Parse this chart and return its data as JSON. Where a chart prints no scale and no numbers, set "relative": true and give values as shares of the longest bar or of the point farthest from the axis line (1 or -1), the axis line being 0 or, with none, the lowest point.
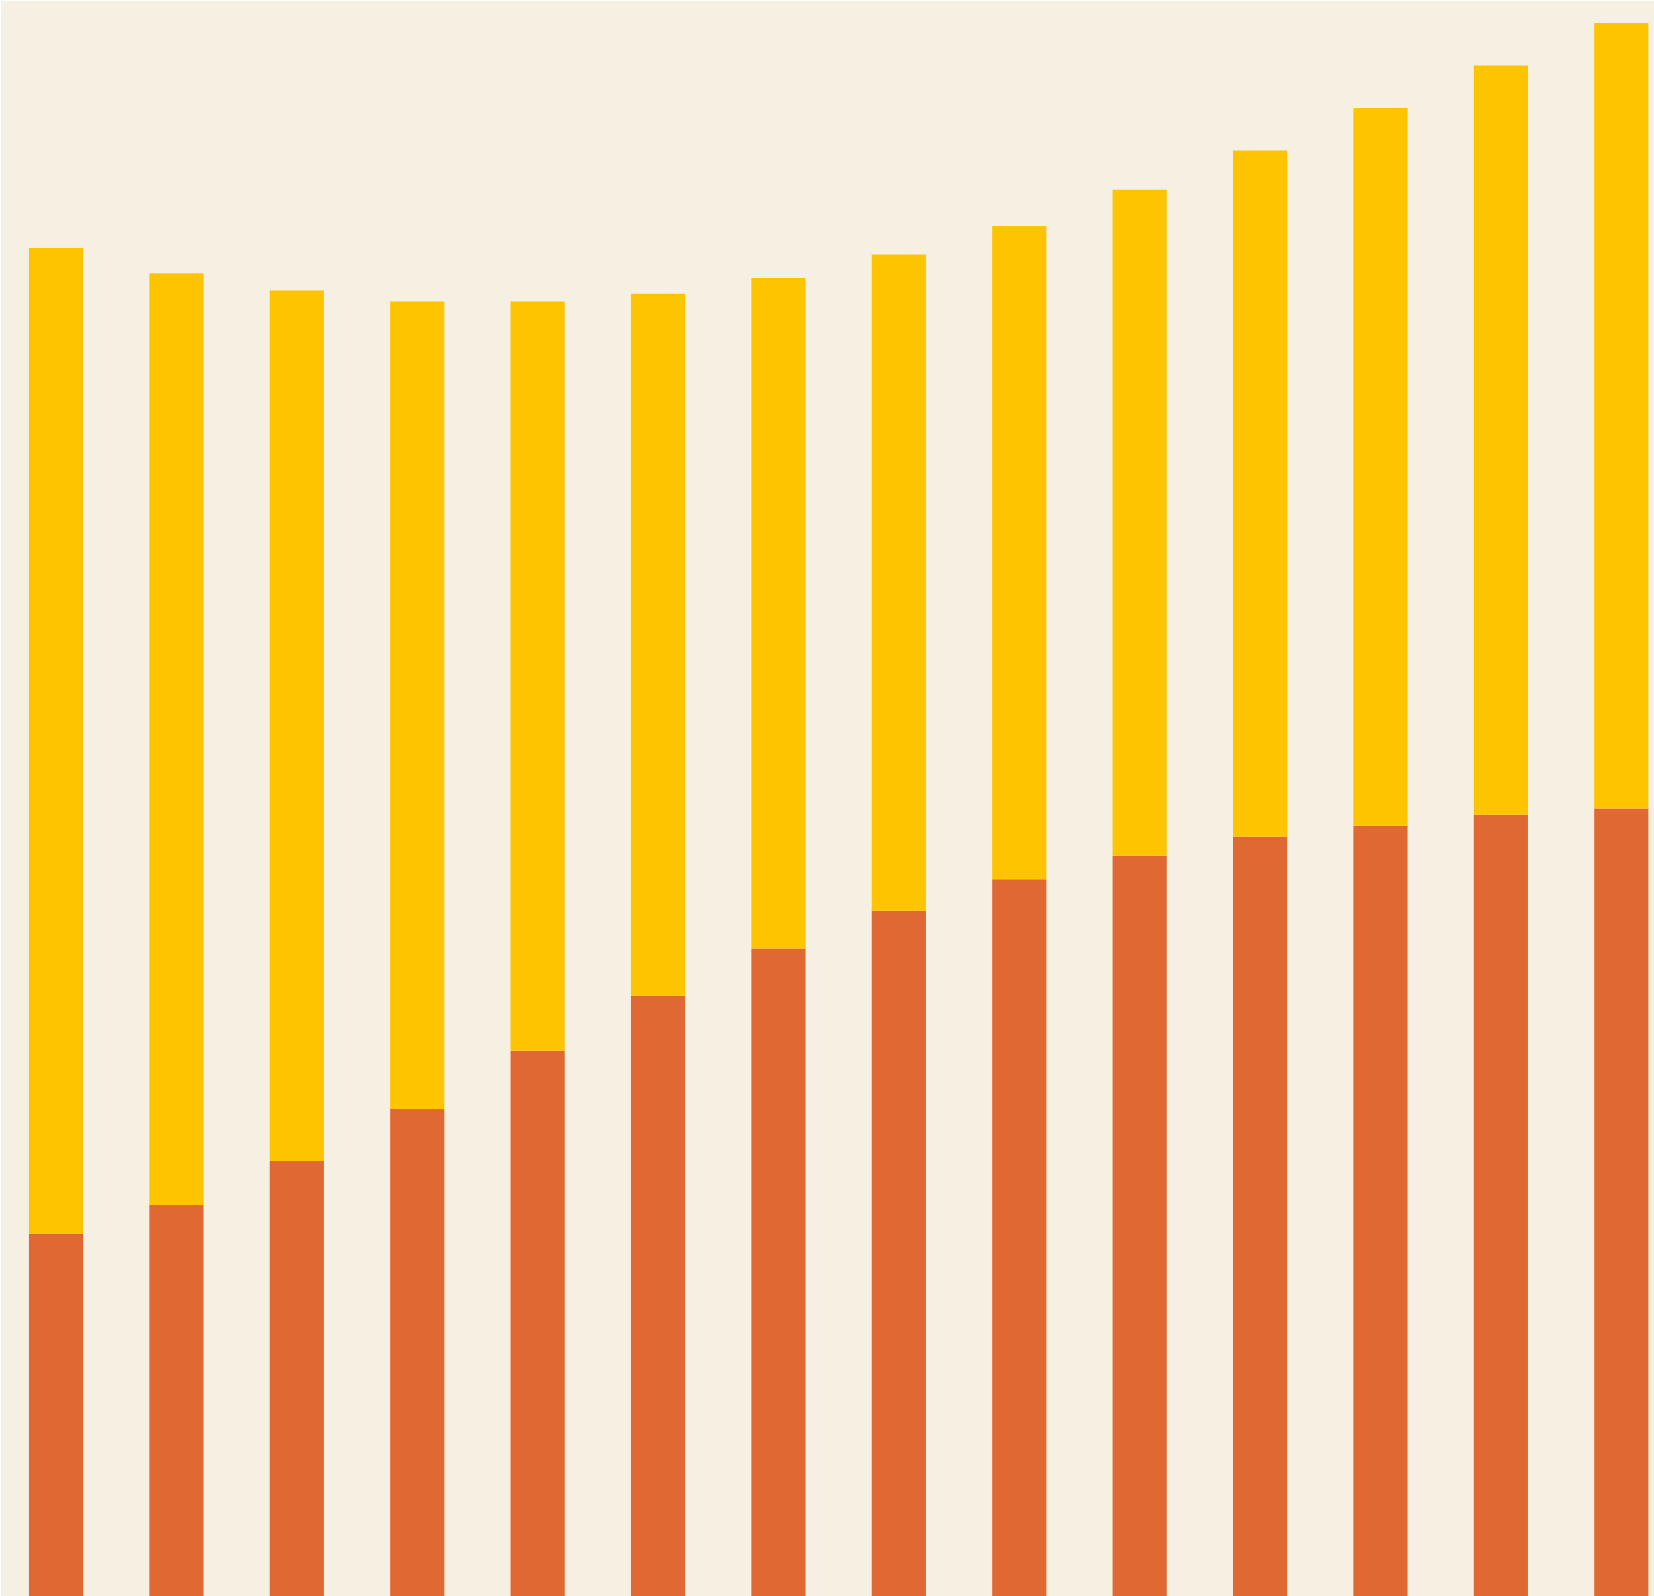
{
  "chart_data": {
    "type": "bar",
    "stacked": true,
    "relative": true,
    "categories": [
      null,
      null,
      null,
      null,
      null,
      null,
      null,
      null,
      null,
      null,
      null,
      null,
      null,
      null
    ],
    "series": [
      {
        "color": "#e06832",
        "values": [
          0.231,
          0.249,
          0.277,
          0.31,
          0.347,
          0.382,
          0.412,
          0.436,
          0.456,
          0.471,
          0.483,
          0.49,
          0.497,
          0.501
        ]
      },
      {
        "color": "#ffc400",
        "values": [
          0.626,
          0.592,
          0.553,
          0.513,
          0.476,
          0.446,
          0.426,
          0.417,
          0.415,
          0.423,
          0.436,
          0.456,
          0.476,
          0.499
        ]
      }
    ]
  }
}
